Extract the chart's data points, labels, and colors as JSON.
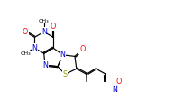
{
  "bg_color": "#ffffff",
  "bond_color": "#000000",
  "nitrogen_color": "#0000cd",
  "oxygen_color": "#ff0000",
  "sulfur_color": "#999900",
  "figsize": [
    2.04,
    1.02
  ],
  "dpi": 100,
  "font_size": 5.8,
  "bond_lw": 0.85,
  "dbo": 0.018,
  "xlim": [
    0.0,
    2.04
  ],
  "ylim": [
    0.0,
    1.02
  ]
}
